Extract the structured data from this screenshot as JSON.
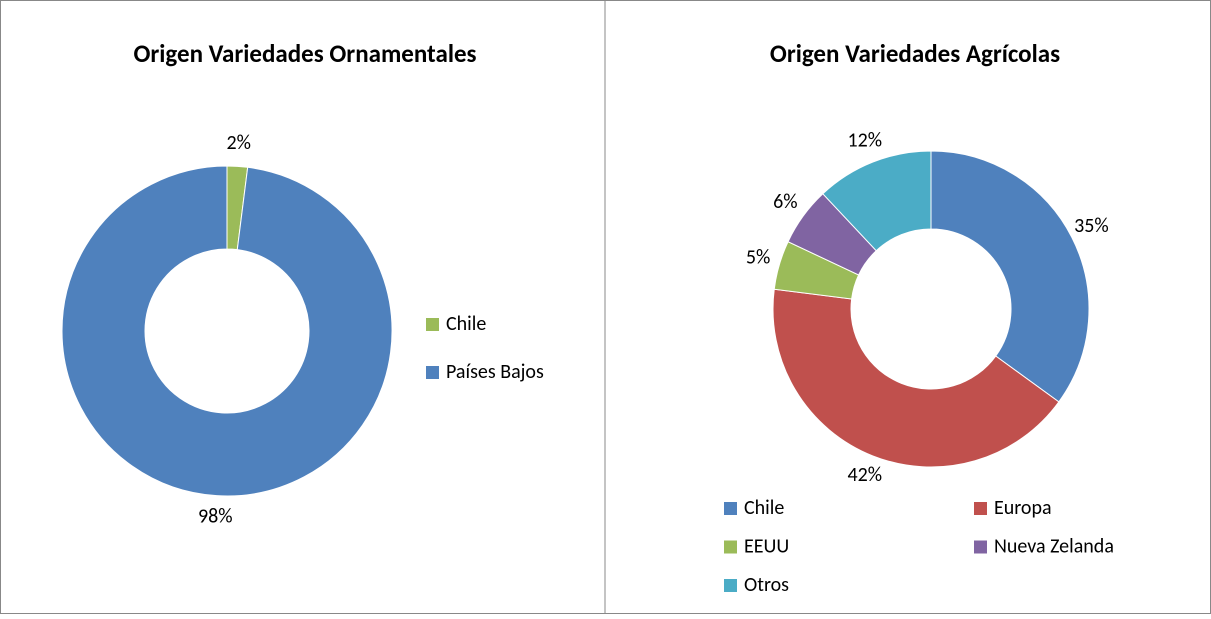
{
  "chart_data": [
    {
      "type": "donut",
      "title": "Origen Variedades Ornamentales",
      "categories": [
        "Chile",
        "Países Bajos"
      ],
      "values": [
        2,
        98
      ],
      "value_labels": [
        "2%",
        "98%"
      ],
      "colors": [
        "#9bbb59",
        "#4f81bd"
      ],
      "legend": "right"
    },
    {
      "type": "donut",
      "title": "Origen Variedades Agrícolas",
      "categories": [
        "Chile",
        "Europa",
        "EEUU",
        "Nueva Zelanda",
        "Otros"
      ],
      "values": [
        35,
        42,
        5,
        6,
        12
      ],
      "value_labels": [
        "35%",
        "42%",
        "5%",
        "6%",
        "12%"
      ],
      "colors": [
        "#4f81bd",
        "#c0504d",
        "#9bbb59",
        "#8064a2",
        "#4bacc6"
      ],
      "legend": "bottom"
    }
  ]
}
